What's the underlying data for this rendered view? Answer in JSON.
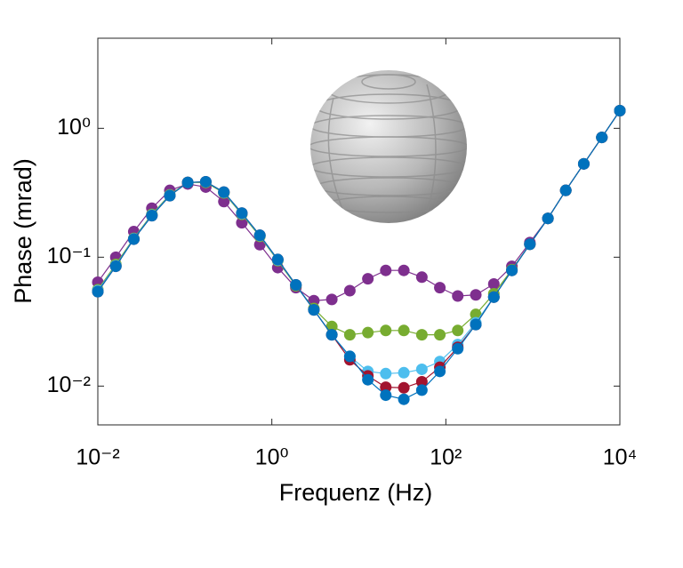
{
  "chart_data": {
    "type": "line",
    "xlabel": "Frequenz (Hz)",
    "ylabel": "Phase (mrad)",
    "xscale": "log",
    "yscale": "log",
    "xlim": [
      0.01,
      10000
    ],
    "ylim": [
      0.005,
      5
    ],
    "xticks": [
      {
        "value": 0.01,
        "label": "10⁻²"
      },
      {
        "value": 1,
        "label": "10⁰"
      },
      {
        "value": 100,
        "label": "10²"
      },
      {
        "value": 10000,
        "label": "10⁴"
      }
    ],
    "yticks": [
      {
        "value": 0.01,
        "label": "10⁻²"
      },
      {
        "value": 0.1,
        "label": "10⁻¹"
      },
      {
        "value": 1,
        "label": "10⁰"
      }
    ],
    "x": [
      0.01,
      0.0161,
      0.0259,
      0.0418,
      0.0672,
      0.108,
      0.174,
      0.281,
      0.452,
      0.728,
      1.17,
      1.89,
      3.04,
      4.89,
      7.88,
      12.7,
      20.4,
      32.9,
      53.0,
      85.3,
      137,
      221,
      356,
      574,
      924,
      1490,
      2390,
      3850,
      6210,
      10000
    ],
    "series": [
      {
        "color": "#7e2f8e",
        "values": [
          0.064,
          0.1,
          0.158,
          0.24,
          0.33,
          0.37,
          0.35,
          0.27,
          0.185,
          0.125,
          0.083,
          0.058,
          0.046,
          0.047,
          0.055,
          0.068,
          0.079,
          0.079,
          0.07,
          0.058,
          0.05,
          0.051,
          0.062,
          0.085,
          0.13,
          0.2,
          0.33,
          0.53,
          0.85,
          1.37
        ]
      },
      {
        "color": "#77ac30",
        "values": [
          0.056,
          0.088,
          0.14,
          0.215,
          0.305,
          0.38,
          0.38,
          0.315,
          0.215,
          0.145,
          0.094,
          0.06,
          0.04,
          0.029,
          0.025,
          0.026,
          0.027,
          0.027,
          0.025,
          0.025,
          0.027,
          0.036,
          0.052,
          0.08,
          0.126,
          0.2,
          0.33,
          0.53,
          0.85,
          1.37
        ]
      },
      {
        "color": "#4dbeee",
        "values": [
          0.055,
          0.086,
          0.139,
          0.212,
          0.302,
          0.38,
          0.384,
          0.318,
          0.218,
          0.147,
          0.095,
          0.061,
          0.039,
          0.025,
          0.017,
          0.013,
          0.0125,
          0.0127,
          0.0135,
          0.0155,
          0.021,
          0.031,
          0.049,
          0.079,
          0.126,
          0.2,
          0.33,
          0.53,
          0.85,
          1.37
        ]
      },
      {
        "color": "#a2142f",
        "values": [
          0.054,
          0.085,
          0.138,
          0.21,
          0.3,
          0.38,
          0.385,
          0.32,
          0.22,
          0.148,
          0.096,
          0.061,
          0.039,
          0.025,
          0.016,
          0.012,
          0.0098,
          0.0097,
          0.0108,
          0.014,
          0.02,
          0.03,
          0.049,
          0.079,
          0.126,
          0.2,
          0.33,
          0.53,
          0.85,
          1.37
        ]
      },
      {
        "color": "#0072bd",
        "values": [
          0.054,
          0.085,
          0.138,
          0.21,
          0.3,
          0.38,
          0.385,
          0.32,
          0.22,
          0.148,
          0.096,
          0.061,
          0.039,
          0.025,
          0.017,
          0.0112,
          0.0085,
          0.0079,
          0.0093,
          0.013,
          0.0195,
          0.03,
          0.049,
          0.079,
          0.126,
          0.2,
          0.33,
          0.53,
          0.85,
          1.37
        ]
      }
    ]
  }
}
